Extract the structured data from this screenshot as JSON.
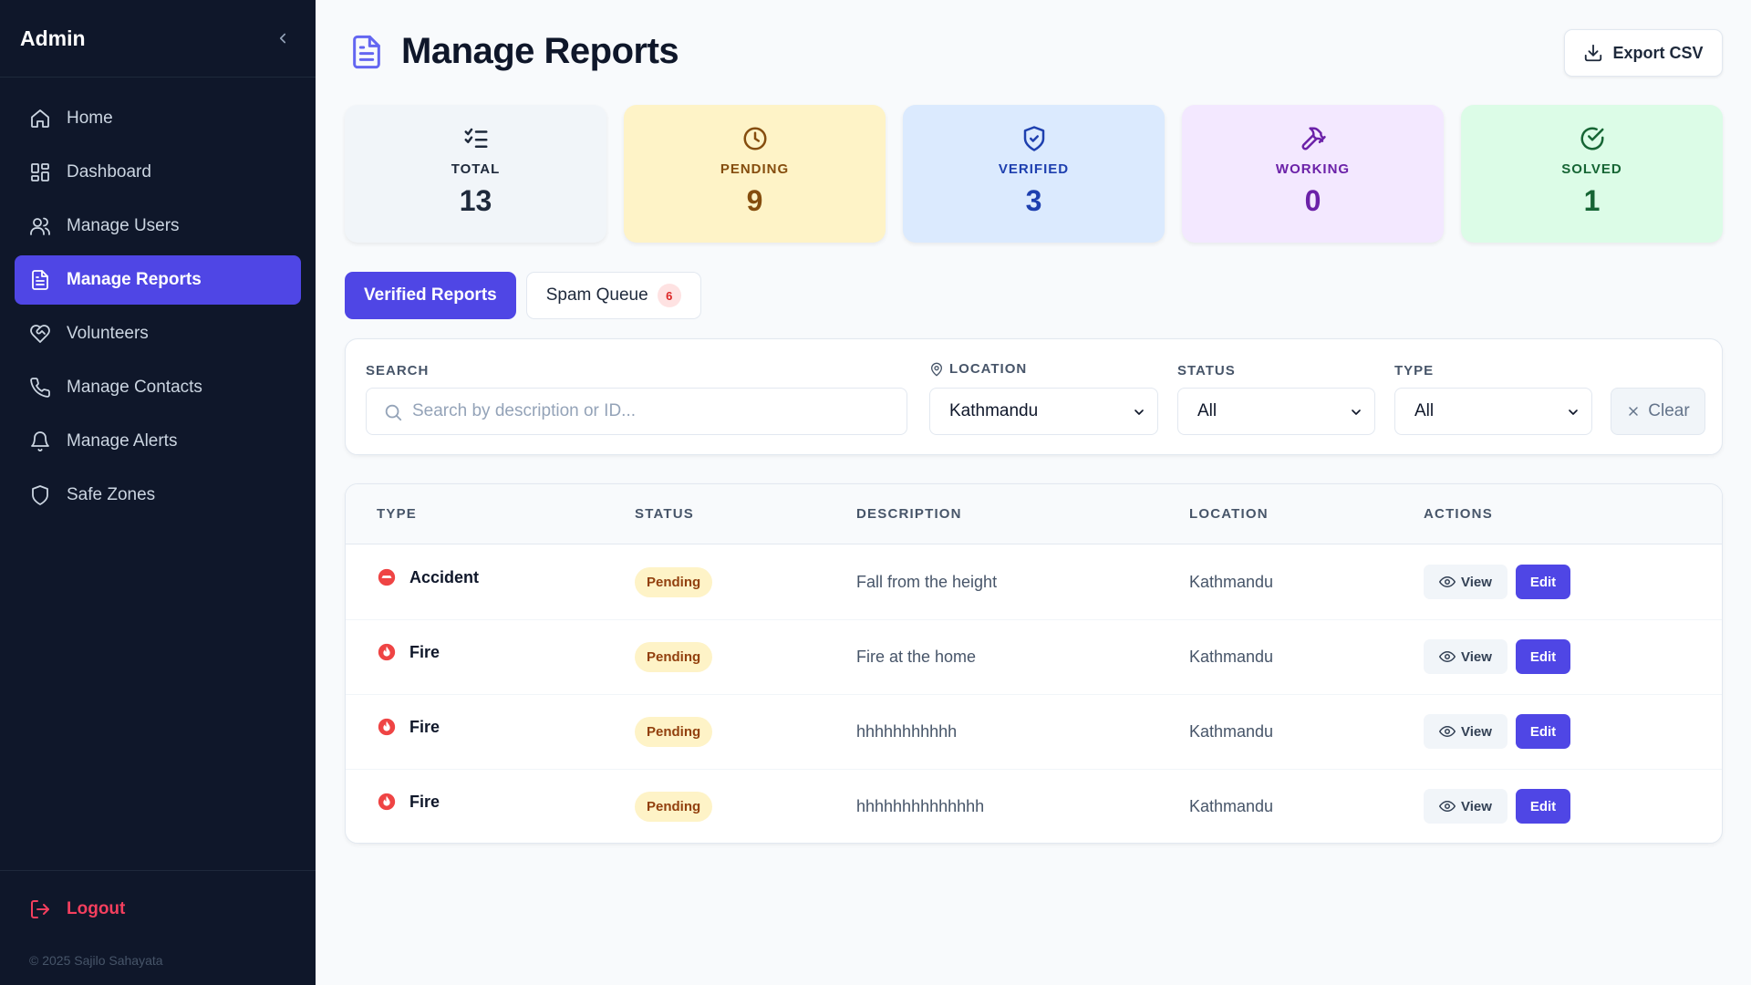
{
  "sidebar": {
    "title": "Admin",
    "items": [
      {
        "label": "Home",
        "icon": "home-icon"
      },
      {
        "label": "Dashboard",
        "icon": "dashboard-icon"
      },
      {
        "label": "Manage Users",
        "icon": "users-icon"
      },
      {
        "label": "Manage Reports",
        "icon": "document-icon",
        "active": true
      },
      {
        "label": "Volunteers",
        "icon": "heart-handshake-icon"
      },
      {
        "label": "Manage Contacts",
        "icon": "phone-icon"
      },
      {
        "label": "Manage Alerts",
        "icon": "bell-icon"
      },
      {
        "label": "Safe Zones",
        "icon": "shield-icon"
      }
    ],
    "logout_label": "Logout",
    "copyright": "© 2025 Sajilo Sahayata"
  },
  "header": {
    "title": "Manage Reports",
    "export_label": "Export CSV"
  },
  "stats": [
    {
      "label": "TOTAL",
      "value": "13",
      "icon": "checklist-icon",
      "bg": "#f1f5f9",
      "color": "#1e293b"
    },
    {
      "label": "PENDING",
      "value": "9",
      "icon": "clock-icon",
      "bg": "#fef3c7",
      "color": "#854d0e"
    },
    {
      "label": "VERIFIED",
      "value": "3",
      "icon": "shield-check-icon",
      "bg": "#dbeafe",
      "color": "#1e40af"
    },
    {
      "label": "WORKING",
      "value": "0",
      "icon": "hammer-icon",
      "bg": "#f3e8ff",
      "color": "#6b21a8"
    },
    {
      "label": "SOLVED",
      "value": "1",
      "icon": "check-circle-icon",
      "bg": "#dcfce7",
      "color": "#166534"
    }
  ],
  "tabs": {
    "verified_label": "Verified Reports",
    "spam_label": "Spam Queue",
    "spam_count": "6"
  },
  "filters": {
    "search_label": "SEARCH",
    "search_placeholder": "Search by description or ID...",
    "location_label": "LOCATION",
    "location_value": "Kathmandu",
    "status_label": "STATUS",
    "status_value": "All",
    "type_label": "TYPE",
    "type_value": "All",
    "clear_label": "Clear"
  },
  "table": {
    "columns": [
      "TYPE",
      "STATUS",
      "DESCRIPTION",
      "LOCATION",
      "ACTIONS"
    ],
    "view_label": "View",
    "edit_label": "Edit",
    "rows": [
      {
        "type": "Accident",
        "type_icon": "accident-icon",
        "status": "Pending",
        "description": "Fall from the height",
        "location": "Kathmandu"
      },
      {
        "type": "Fire",
        "type_icon": "fire-icon",
        "status": "Pending",
        "description": "Fire at the home",
        "location": "Kathmandu"
      },
      {
        "type": "Fire",
        "type_icon": "fire-icon",
        "status": "Pending",
        "description": "hhhhhhhhhhh",
        "location": "Kathmandu"
      },
      {
        "type": "Fire",
        "type_icon": "fire-icon",
        "status": "Pending",
        "description": "hhhhhhhhhhhhhh",
        "location": "Kathmandu"
      }
    ]
  },
  "colors": {
    "accent": "#4f46e5",
    "sidebar_bg": "#0f172a",
    "logout": "#f43f5e",
    "pending_bg": "#fef3c7",
    "danger": "#dc2626"
  }
}
